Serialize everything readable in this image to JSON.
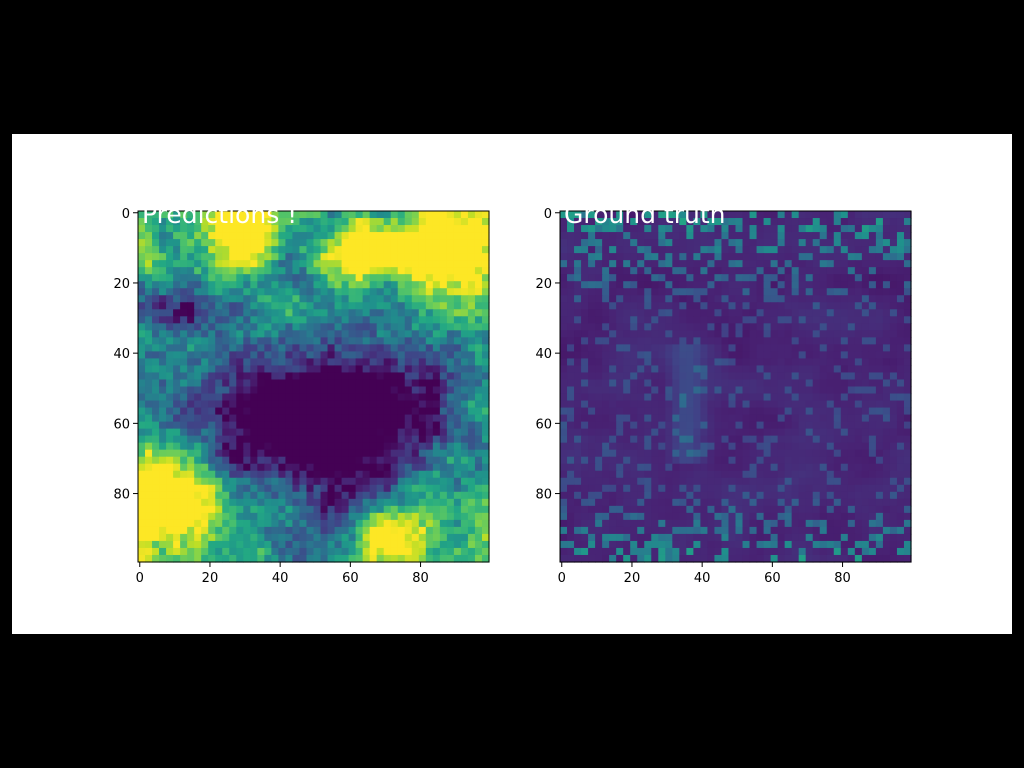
{
  "chart_data": [
    {
      "type": "heatmap",
      "title": "Predictions !",
      "colormap": "viridis",
      "grid_size": [
        100,
        100
      ],
      "xlim": [
        0,
        99
      ],
      "ylim": [
        99,
        0
      ],
      "xticks": [
        "0",
        "20",
        "40",
        "60",
        "80"
      ],
      "yticks": [
        "0",
        "20",
        "40",
        "60",
        "80"
      ],
      "grid": false,
      "legend": false
    },
    {
      "type": "heatmap",
      "title": "Ground truth",
      "colormap": "viridis",
      "grid_size": [
        100,
        100
      ],
      "xlim": [
        0,
        99
      ],
      "ylim": [
        99,
        0
      ],
      "xticks": [
        "0",
        "20",
        "40",
        "60",
        "80"
      ],
      "yticks": [
        "0",
        "20",
        "40",
        "60",
        "80"
      ],
      "grid": false,
      "legend": false
    }
  ],
  "colors": {
    "outer_background": "#000000",
    "figure_background": "#ffffff",
    "title_text": "#ffffff",
    "axis": "#000000",
    "viridis_low": "#440154",
    "viridis_high": "#fde725"
  }
}
